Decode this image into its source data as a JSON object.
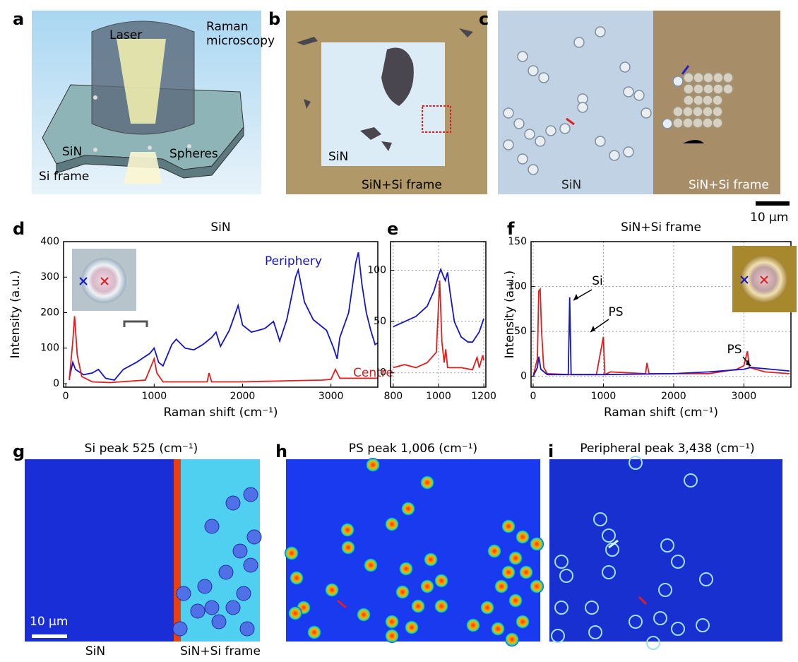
{
  "panels": [
    {
      "label": "a",
      "texts": [
        "Laser",
        "Raman",
        "microscopy",
        "SiN",
        "Spheres",
        "Si frame"
      ]
    },
    {
      "label": "b",
      "texts": [
        "SiN",
        "SiN+Si frame"
      ]
    },
    {
      "label": "c",
      "texts": [
        "SiN",
        "SiN+Si frame",
        "10 µm"
      ]
    },
    {
      "label": "g",
      "title": "Si peak 525 (cm⁻¹)",
      "texts": [
        "10 µm",
        "SiN",
        "SiN+Si frame"
      ]
    },
    {
      "label": "h",
      "title": "PS peak 1,006 (cm⁻¹)",
      "texts": []
    },
    {
      "label": "i",
      "title": "Peripheral peak 3,438 (cm⁻¹)",
      "texts": []
    }
  ],
  "chart_data": [
    {
      "type": "line",
      "panel_label": "d",
      "title": "SiN",
      "x_label": "Raman shift (cm⁻¹)",
      "y_label": "Intensity (a.u.)",
      "xlim": [
        -25,
        3530
      ],
      "ylim": [
        -10,
        400
      ],
      "xticks": [
        0,
        1000,
        2000,
        3000
      ],
      "yticks": [
        0,
        100,
        200,
        300,
        400
      ],
      "grid": false,
      "series": [
        {
          "name": "Periphery",
          "color": "#1414c8",
          "x": [
            40,
            80,
            110,
            200,
            300,
            370,
            450,
            550,
            650,
            800,
            950,
            1000,
            1050,
            1100,
            1200,
            1250,
            1350,
            1450,
            1550,
            1650,
            1700,
            1750,
            1850,
            1950,
            2000,
            2100,
            2250,
            2350,
            2420,
            2500,
            2600,
            2630,
            2700,
            2800,
            2950,
            3030,
            3070,
            3100,
            3200,
            3280,
            3310,
            3350,
            3400,
            3450,
            3500,
            3530
          ],
          "values": [
            15,
            60,
            40,
            25,
            30,
            40,
            15,
            10,
            40,
            60,
            85,
            100,
            60,
            50,
            110,
            125,
            100,
            95,
            110,
            130,
            145,
            105,
            150,
            220,
            165,
            145,
            155,
            175,
            120,
            180,
            300,
            320,
            230,
            180,
            150,
            100,
            70,
            130,
            200,
            340,
            370,
            280,
            200,
            150,
            110,
            115
          ]
        },
        {
          "name": "Centre",
          "color": "#e01e1e",
          "x": [
            40,
            80,
            100,
            130,
            180,
            300,
            500,
            900,
            1000,
            1030,
            1100,
            1500,
            1600,
            1620,
            1650,
            2000,
            2500,
            2900,
            3000,
            3050,
            3100,
            3530
          ],
          "values": [
            10,
            120,
            190,
            80,
            20,
            5,
            3,
            10,
            70,
            30,
            5,
            5,
            5,
            30,
            5,
            5,
            8,
            10,
            12,
            40,
            15,
            15
          ]
        }
      ]
    },
    {
      "type": "line",
      "panel_label": "e",
      "xlim": [
        788,
        1209
      ],
      "ylim": [
        -14,
        128
      ],
      "xticks": [
        800,
        1000,
        1200
      ],
      "yticks": [
        0,
        50,
        100
      ],
      "grid": true,
      "series": [
        {
          "color": "#1414c8",
          "x": [
            800,
            850,
            900,
            950,
            980,
            1000,
            1010,
            1020,
            1030,
            1040,
            1050,
            1070,
            1100,
            1130,
            1150,
            1180,
            1200
          ],
          "values": [
            45,
            50,
            55,
            65,
            80,
            95,
            101,
            95,
            90,
            98,
            80,
            50,
            35,
            30,
            30,
            40,
            53
          ]
        },
        {
          "color": "#e01e1e",
          "x": [
            800,
            850,
            900,
            950,
            990,
            1005,
            1015,
            1025,
            1032,
            1040,
            1100,
            1150,
            1170,
            1180,
            1195,
            1200
          ],
          "values": [
            5,
            8,
            5,
            10,
            20,
            90,
            30,
            10,
            23,
            5,
            5,
            3,
            15,
            5,
            17,
            12
          ]
        }
      ]
    },
    {
      "type": "line",
      "panel_label": "f",
      "title": "SiN+Si frame",
      "x_label": "Raman shift (cm⁻¹)",
      "y_label": "Intensity (a.u.)",
      "xlim": [
        -30,
        3670
      ],
      "ylim": [
        -12,
        150
      ],
      "xticks": [
        0,
        1000,
        2000,
        3000
      ],
      "yticks": [
        0,
        50,
        100,
        150
      ],
      "grid": true,
      "annotations": [
        "Si",
        "PS",
        "PS"
      ],
      "series": [
        {
          "color": "#e01e1e",
          "x": [
            0,
            60,
            80,
            100,
            120,
            150,
            200,
            500,
            900,
            1000,
            1020,
            1100,
            1600,
            1620,
            1650,
            2500,
            2900,
            3000,
            3050,
            3080,
            3300,
            3650
          ],
          "values": [
            0,
            20,
            95,
            97,
            50,
            10,
            3,
            2,
            2,
            44,
            2,
            5,
            3,
            15,
            3,
            3,
            8,
            12,
            28,
            10,
            5,
            3
          ]
        },
        {
          "color": "#1414c8",
          "x": [
            0,
            60,
            80,
            110,
            200,
            500,
            520,
            540,
            1000,
            2000,
            2500,
            3000,
            3100,
            3650
          ],
          "values": [
            0,
            10,
            22,
            8,
            2,
            2,
            88,
            2,
            2,
            3,
            5,
            8,
            10,
            6
          ]
        }
      ]
    }
  ]
}
